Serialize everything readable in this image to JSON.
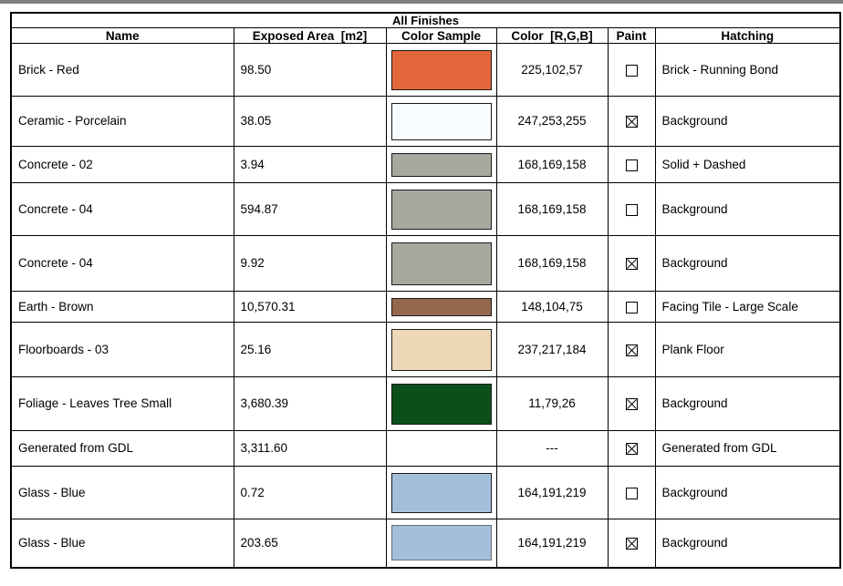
{
  "window": {
    "top_strip_color": "#7f7f7f"
  },
  "table": {
    "title": "All Finishes",
    "columns": [
      "Name",
      "Exposed Area  [m2]",
      "Color Sample",
      "Color  [R,G,B]",
      "Paint",
      "Hatching"
    ],
    "checkbox_checked_glyph": "x-mark",
    "rows": [
      {
        "name": "Brick - Red",
        "area": "98.50",
        "sample": "#E16639",
        "sample_border": "#1a1a1a",
        "rgb": "225,102,57",
        "paint": false,
        "hatching": "Brick - Running Bond"
      },
      {
        "name": "Ceramic - Porcelain",
        "area": "38.05",
        "sample": "#F7FDFF",
        "sample_border": "#1a1a1a",
        "rgb": "247,253,255",
        "paint": true,
        "hatching": "Background"
      },
      {
        "name": "Concrete - 02",
        "area": "3.94",
        "sample": "#A8A99E",
        "sample_border": "#1a1a1a",
        "rgb": "168,169,158",
        "paint": false,
        "hatching": "Solid + Dashed"
      },
      {
        "name": "Concrete - 04",
        "area": "594.87",
        "sample": "#A8A99E",
        "sample_border": "#1a1a1a",
        "rgb": "168,169,158",
        "paint": false,
        "hatching": "Background"
      },
      {
        "name": "Concrete - 04",
        "area": "9.92",
        "sample": "#A8A99E",
        "sample_border": "#1a1a1a",
        "rgb": "168,169,158",
        "paint": true,
        "hatching": "Background"
      },
      {
        "name": "Earth - Brown",
        "area": "10,570.31",
        "sample": "#94684B",
        "sample_border": "#1a1a1a",
        "rgb": "148,104,75",
        "paint": false,
        "hatching": "Facing Tile - Large Scale"
      },
      {
        "name": "Floorboards - 03",
        "area": "25.16",
        "sample": "#EDD9B8",
        "sample_border": "#1a1a1a",
        "rgb": "237,217,184",
        "paint": true,
        "hatching": "Plank Floor"
      },
      {
        "name": "Foliage - Leaves Tree Small",
        "area": "3,680.39",
        "sample": "#0B4F1A",
        "sample_border": "#1a1a1a",
        "rgb": "11,79,26",
        "paint": true,
        "hatching": "Background"
      },
      {
        "name": "Generated from GDL",
        "area": "3,311.60",
        "sample": null,
        "sample_border": null,
        "rgb": "---",
        "paint": true,
        "hatching": "Generated from GDL"
      },
      {
        "name": "Glass - Blue",
        "area": "0.72",
        "sample": "#A4BFDB",
        "sample_border": "#1a1a1a",
        "rgb": "164,191,219",
        "paint": false,
        "hatching": "Background"
      },
      {
        "name": "Glass - Blue",
        "area": "203.65",
        "sample": "#A4BFDB",
        "sample_border": "#6e6e6e",
        "rgb": "164,191,219",
        "paint": true,
        "hatching": "Background"
      }
    ]
  }
}
